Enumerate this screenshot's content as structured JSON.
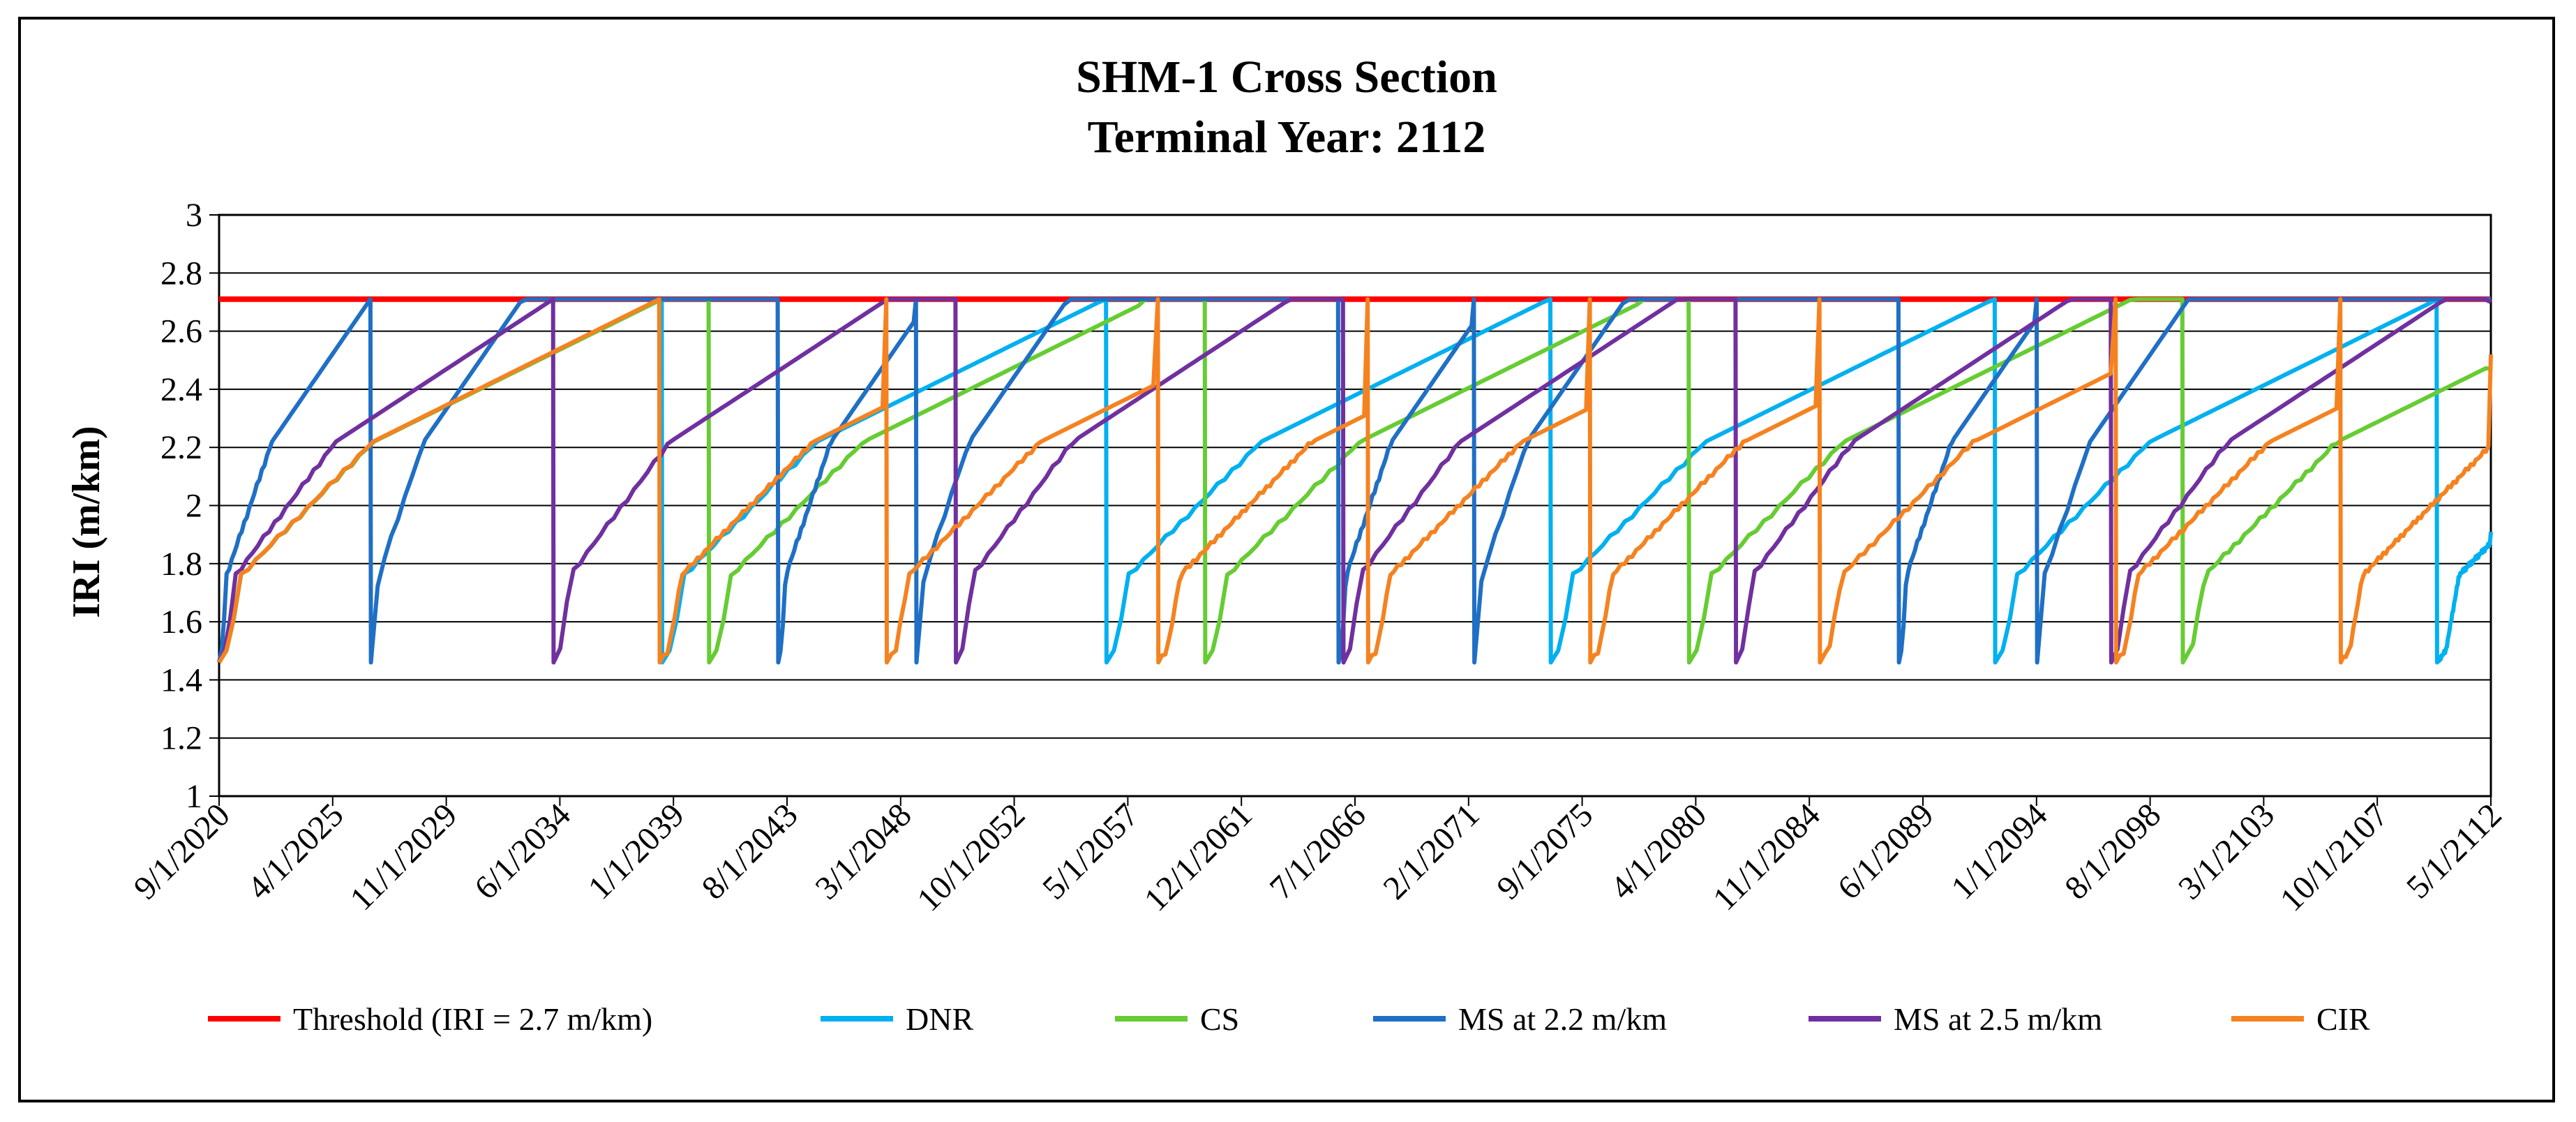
{
  "chart_data": {
    "type": "line",
    "title": "SHM-1 Cross Section",
    "subtitle": "Terminal  Year: 2112",
    "xlabel": "",
    "ylabel": "IRI (m/km)",
    "ylim": [
      1,
      3
    ],
    "ystep": 0.2,
    "y_ticks": [
      "1",
      "1.2",
      "1.4",
      "1.6",
      "1.8",
      "2",
      "2.2",
      "2.4",
      "2.6",
      "2.8",
      "3"
    ],
    "xlim": [
      2020.67,
      2112.7
    ],
    "x_ticks": [
      "9/1/2020",
      "4/1/2025",
      "11/1/2029",
      "6/1/2034",
      "1/1/2039",
      "8/1/2043",
      "3/1/2048",
      "10/1/2052",
      "5/1/2057",
      "12/1/2061",
      "7/1/2066",
      "2/1/2071",
      "9/1/2075",
      "4/1/2080",
      "11/1/2084",
      "6/1/2089",
      "1/1/2094",
      "8/1/2098",
      "3/1/2103",
      "10/1/2107",
      "5/1/2112"
    ],
    "grid": true,
    "legend_position": "bottom",
    "series": [
      {
        "name": "Threshold (IRI = 2.7 m/km)",
        "color": "#ff0000",
        "kind": "threshold",
        "value": 2.71
      },
      {
        "name": "DNR",
        "color": "#00b0f0",
        "kind": "cycle",
        "start_year": 2020.67,
        "start_iri": 1.46,
        "resets": [
          2038.6,
          2056.6,
          2074.6,
          2092.6,
          2110.5
        ],
        "holds": [
          [
            2038.6,
            2038.6
          ],
          [
            2056.6,
            2056.6
          ],
          [
            2074.6,
            2074.6
          ],
          [
            2092.6,
            2092.6
          ],
          [
            2110.5,
            2110.5
          ]
        ],
        "end_iri": 1.91
      },
      {
        "name": "CS",
        "color": "#66cc33",
        "kind": "cycle",
        "start_year": 2020.67,
        "start_iri": 1.46,
        "resets": [
          2040.5,
          2060.6,
          2080.2,
          2100.2
        ],
        "holds": [
          [
            2038.6,
            2040.5
          ],
          [
            2058.2,
            2060.6
          ],
          [
            2078.4,
            2080.2
          ],
          [
            2098.4,
            2100.2
          ]
        ],
        "end_iri": 2.47
      },
      {
        "name": "MS at 2.2 m/km",
        "color": "#1f6fc5",
        "kind": "cycle",
        "start_year": 2020.67,
        "start_iri": 1.46,
        "resets": [
          2026.8,
          2043.3,
          2048.9,
          2066.0,
          2071.5,
          2088.7,
          2094.3
        ],
        "holds": [
          [
            2026.8,
            2026.8
          ],
          [
            2043.3,
            2043.3
          ],
          [
            2048.9,
            2048.9
          ],
          [
            2066.0,
            2066.0
          ],
          [
            2071.5,
            2071.5
          ],
          [
            2088.7,
            2088.7
          ],
          [
            2094.3,
            2094.3
          ]
        ],
        "end_iri": 2.71
      },
      {
        "name": "MS at 2.5 m/km",
        "color": "#7030a0",
        "kind": "cycle",
        "start_year": 2020.67,
        "start_iri": 1.46,
        "resets": [
          2034.2,
          2050.5,
          2066.2,
          2082.1,
          2097.3
        ],
        "holds": [
          [
            2034.2,
            2034.2
          ],
          [
            2050.5,
            2050.5
          ],
          [
            2066.2,
            2066.2
          ],
          [
            2082.1,
            2082.1
          ],
          [
            2097.3,
            2097.3
          ]
        ],
        "end_iri": 2.7
      },
      {
        "name": "CIR",
        "color": "#f58220",
        "kind": "cycle",
        "start_year": 2020.67,
        "start_iri": 1.46,
        "resets": [
          2038.5,
          2047.7,
          2058.7,
          2067.2,
          2076.2,
          2085.5,
          2097.5,
          2106.6
        ],
        "holds": [
          [
            2038.5,
            2038.5
          ],
          [
            2047.7,
            2047.7
          ],
          [
            2058.7,
            2058.7
          ],
          [
            2067.2,
            2067.2
          ],
          [
            2076.2,
            2076.2
          ],
          [
            2085.5,
            2085.5
          ],
          [
            2097.5,
            2097.5
          ],
          [
            2106.6,
            2106.6
          ]
        ],
        "end_iri": 2.52
      }
    ]
  }
}
